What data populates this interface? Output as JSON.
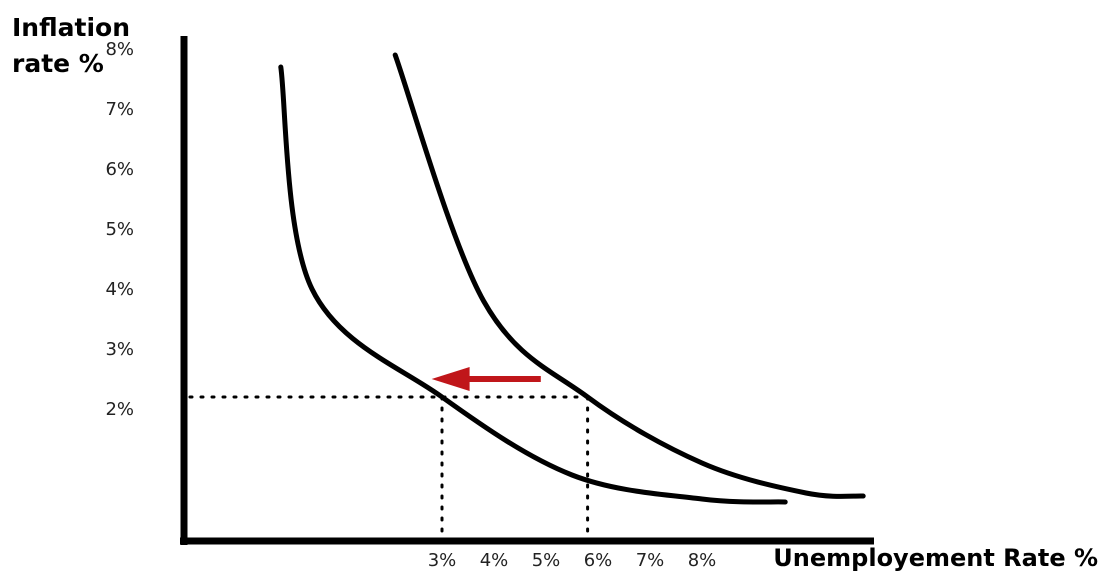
{
  "chart_data": {
    "type": "line",
    "title": "",
    "ylabel_lines": [
      "Inflation",
      "rate %"
    ],
    "xlabel": "Unemployement Rate %",
    "y_ticks": [
      "8%",
      "7%",
      "6%",
      "5%",
      "4%",
      "3%",
      "2%"
    ],
    "x_ticks": [
      "3%",
      "4%",
      "5%",
      "6%",
      "7%",
      "8%"
    ],
    "series": [
      {
        "points": [
          [
            -0.1,
            7.7
          ],
          [
            0.5,
            4.0
          ],
          [
            3.0,
            2.2
          ],
          [
            5.5,
            0.9
          ],
          [
            8.0,
            0.5
          ],
          [
            9.6,
            0.45
          ]
        ]
      },
      {
        "points": [
          [
            2.1,
            7.9
          ],
          [
            3.8,
            3.8
          ],
          [
            5.8,
            2.2
          ],
          [
            8.0,
            1.1
          ],
          [
            10.0,
            0.6
          ],
          [
            11.1,
            0.55
          ]
        ]
      }
    ],
    "reference_point_a": {
      "x": 3.0,
      "y": 2.2
    },
    "reference_point_b": {
      "x": 5.8,
      "y": 2.2
    },
    "shift_arrow": {
      "from": [
        4.9,
        2.5
      ],
      "to": [
        2.8,
        2.5
      ],
      "color": "#c0161a"
    },
    "line_color": "#000000"
  }
}
